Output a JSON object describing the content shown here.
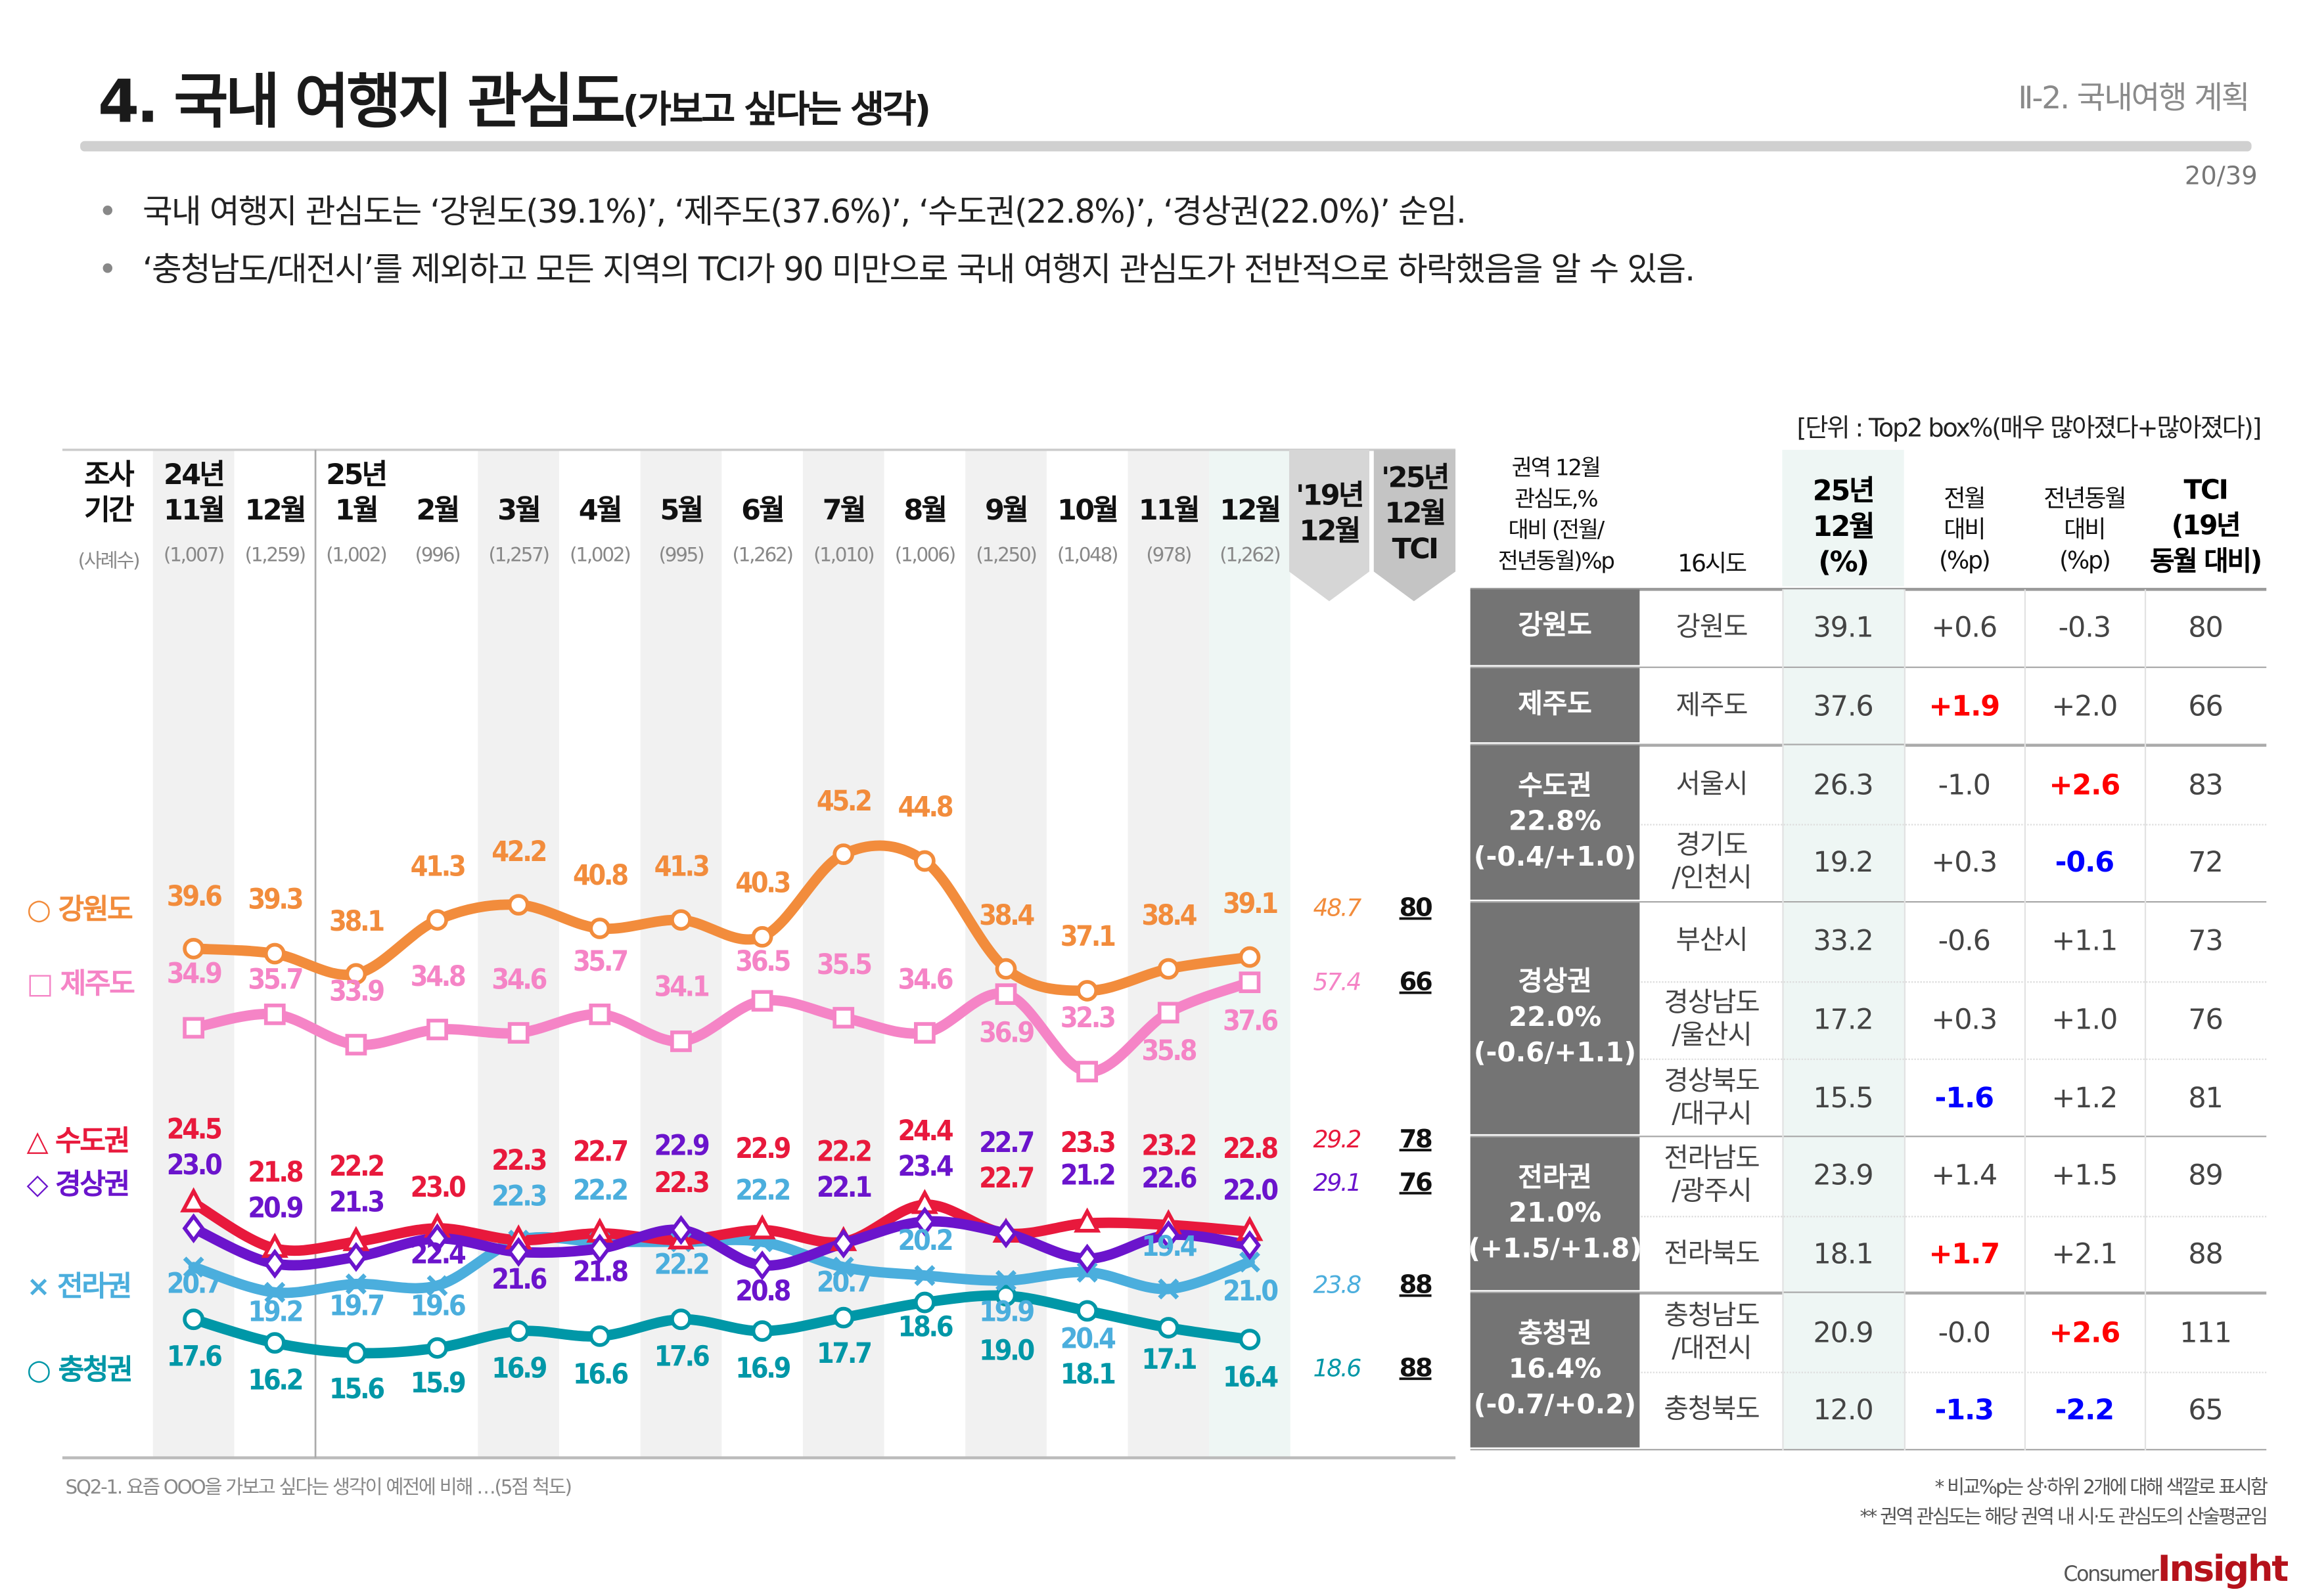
{
  "header": {
    "title_main": "4. 국내 여행지 관심도",
    "title_sub": "(가보고 싶다는 생각)",
    "section": "Ⅱ-2. 국내여행 계획",
    "page": "20/39"
  },
  "bullets": [
    "국내 여행지 관심도는 ‘강원도(39.1%)’, ‘제주도(37.6%)’, ‘수도권(22.8%)’, ‘경상권(22.0%)’ 순임.",
    "‘충청남도/대전시’를 제외하고 모든 지역의 TCI가 90 미만으로 국내 여행지 관심도가 전반적으로 하락했음을 알 수 있음."
  ],
  "unit": "[단위 : Top2 box%(매우 많아졌다+많아졌다)]",
  "chart_data": {
    "type": "line",
    "period_label": [
      "조사",
      "기간"
    ],
    "sample_label": "(사례수)",
    "year_labels": {
      "0": "24년",
      "2": "25년"
    },
    "categories": [
      "11월",
      "12월",
      "1월",
      "2월",
      "3월",
      "4월",
      "5월",
      "6월",
      "7월",
      "8월",
      "9월",
      "10월",
      "11월",
      "12월"
    ],
    "sample_sizes": [
      "(1,007)",
      "(1,259)",
      "(1,002)",
      "(996)",
      "(1,257)",
      "(1,002)",
      "(995)",
      "(1,262)",
      "(1,010)",
      "(1,006)",
      "(1,250)",
      "(1,048)",
      "(978)",
      "(1,262)"
    ],
    "ref_col_label": [
      "'19년",
      "12월"
    ],
    "tci_col_label": [
      "'25년",
      "12월",
      "TCI"
    ],
    "series": [
      {
        "name": "강원도",
        "marker": "circle",
        "color": "#F28C3C",
        "values": [
          39.6,
          39.3,
          38.1,
          41.3,
          42.2,
          40.8,
          41.3,
          40.3,
          45.2,
          44.8,
          38.4,
          37.1,
          38.4,
          39.1
        ],
        "ref_2019": "48.7",
        "tci": "80"
      },
      {
        "name": "제주도",
        "marker": "square",
        "color": "#F584C6",
        "values": [
          34.9,
          35.7,
          33.9,
          34.8,
          34.6,
          35.7,
          34.1,
          36.5,
          35.5,
          34.6,
          36.9,
          32.3,
          35.8,
          37.6
        ],
        "ref_2019": "57.4",
        "tci": "66"
      },
      {
        "name": "수도권",
        "marker": "triangle",
        "color": "#E8193C",
        "values": [
          24.5,
          21.8,
          22.2,
          23.0,
          22.3,
          22.7,
          22.3,
          22.9,
          22.2,
          24.4,
          22.7,
          23.3,
          23.2,
          22.8
        ],
        "ref_2019": "29.2",
        "tci": "78"
      },
      {
        "name": "경상권",
        "marker": "diamond",
        "color": "#6B14CC",
        "values": [
          23.0,
          20.9,
          21.3,
          22.4,
          21.6,
          21.8,
          22.9,
          20.8,
          22.1,
          23.4,
          22.7,
          21.2,
          22.6,
          22.0
        ],
        "ref_2019": "29.1",
        "tci": "76"
      },
      {
        "name": "전라권",
        "marker": "x",
        "color": "#4BAEDD",
        "values": [
          20.7,
          19.2,
          19.7,
          19.6,
          22.3,
          22.2,
          22.2,
          22.2,
          20.7,
          20.2,
          19.9,
          20.4,
          19.4,
          21.0
        ],
        "ref_2019": "23.8",
        "tci": "88"
      },
      {
        "name": "충청권",
        "marker": "circle",
        "color": "#0097A7",
        "values": [
          17.6,
          16.2,
          15.6,
          15.9,
          16.9,
          16.6,
          17.6,
          16.9,
          17.7,
          18.6,
          19.0,
          18.1,
          17.1,
          16.4
        ],
        "ref_2019": "18.6",
        "tci": "88"
      }
    ],
    "legend_symbols": [
      "○",
      "□",
      "△",
      "◇",
      "×",
      "○"
    ],
    "grid": false
  },
  "table": {
    "headers": [
      "권역 12월 관심도,% 대비 (전월/ 전년동월)%p",
      "16시도",
      "25년 12월 (%)",
      "전월 대비 (%p)",
      "전년동월 대비 (%p)",
      "TCI (19년 동월 대비)"
    ],
    "highlight_colors": {
      "up": "#FF0000",
      "down": "#0000FF"
    },
    "groups": [
      {
        "name": "강원도",
        "pct": "",
        "change": "",
        "rows": [
          {
            "region": "강원도",
            "value": "39.1",
            "mom": "+0.6",
            "yoy": "-0.3",
            "tci": "80"
          }
        ]
      },
      {
        "name": "제주도",
        "pct": "",
        "change": "",
        "rows": [
          {
            "region": "제주도",
            "value": "37.6",
            "mom": "+1.9",
            "mom_hl": "up",
            "yoy": "+2.0",
            "tci": "66"
          }
        ]
      },
      {
        "name": "수도권",
        "pct": "22.8%",
        "change": "(-0.4/+1.0)",
        "rows": [
          {
            "region": "서울시",
            "value": "26.3",
            "mom": "-1.0",
            "yoy": "+2.6",
            "yoy_hl": "up",
            "tci": "83"
          },
          {
            "region": "경기도 /인천시",
            "value": "19.2",
            "mom": "+0.3",
            "yoy": "-0.6",
            "yoy_hl": "down",
            "tci": "72"
          }
        ]
      },
      {
        "name": "경상권",
        "pct": "22.0%",
        "change": "(-0.6/+1.1)",
        "rows": [
          {
            "region": "부산시",
            "value": "33.2",
            "mom": "-0.6",
            "yoy": "+1.1",
            "tci": "73"
          },
          {
            "region": "경상남도 /울산시",
            "value": "17.2",
            "mom": "+0.3",
            "yoy": "+1.0",
            "tci": "76"
          },
          {
            "region": "경상북도 /대구시",
            "value": "15.5",
            "mom": "-1.6",
            "mom_hl": "down",
            "yoy": "+1.2",
            "tci": "81"
          }
        ]
      },
      {
        "name": "전라권",
        "pct": "21.0%",
        "change": "(+1.5/+1.8)",
        "rows": [
          {
            "region": "전라남도 /광주시",
            "value": "23.9",
            "mom": "+1.4",
            "yoy": "+1.5",
            "tci": "89"
          },
          {
            "region": "전라북도",
            "value": "18.1",
            "mom": "+1.7",
            "mom_hl": "up",
            "yoy": "+2.1",
            "tci": "88"
          }
        ]
      },
      {
        "name": "충청권",
        "pct": "16.4%",
        "change": "(-0.7/+0.2)",
        "rows": [
          {
            "region": "충청남도 /대전시",
            "value": "20.9",
            "mom": "-0.0",
            "yoy": "+2.6",
            "yoy_hl": "up",
            "tci": "111"
          },
          {
            "region": "충청북도",
            "value": "12.0",
            "mom": "-1.3",
            "mom_hl": "down",
            "yoy": "-2.2",
            "yoy_hl": "down",
            "tci": "65"
          }
        ]
      }
    ]
  },
  "footer": {
    "question": "SQ2-1. 요즘 OOO을 가보고 싶다는 생각이 예전에 비해 …(5점 척도)",
    "notes": [
      "* 비교%p는 상·하위 2개에 대해 색깔로 표시함",
      "** 권역 관심도는 해당 권역 내 시·도 관심도의 산술평균임"
    ],
    "logo_small": "Consumer",
    "logo_big": "Insight"
  }
}
